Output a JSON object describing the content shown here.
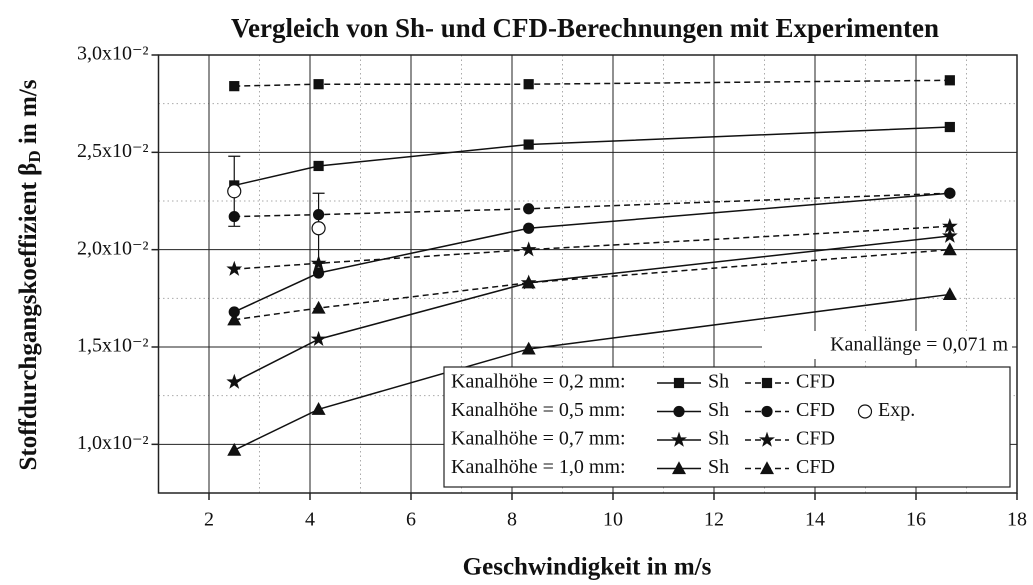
{
  "chart_data": {
    "type": "line",
    "title": "Vergleich von Sh- und CFD-Berechnungen mit Experimenten",
    "xlabel": "Geschwindigkeit in m/s",
    "ylabel": [
      "Stoffdurchgangskoeffizient β",
      "D",
      " in m/s"
    ],
    "annotation": "Kanallänge = 0,071 m",
    "x": [
      2.5,
      4.17,
      8.33,
      16.67
    ],
    "xlim": [
      1,
      18
    ],
    "xticks": [
      2,
      4,
      6,
      8,
      10,
      12,
      14,
      16,
      18
    ],
    "ylim": [
      0.0075,
      0.03
    ],
    "yticks": [
      {
        "value": 0.01,
        "label": "1,0x10⁻²"
      },
      {
        "value": 0.015,
        "label": "1,5x10⁻²"
      },
      {
        "value": 0.02,
        "label": "2,0x10⁻²"
      },
      {
        "value": 0.025,
        "label": "2,5x10⁻²"
      },
      {
        "value": 0.03,
        "label": "3,0x10⁻²"
      }
    ],
    "grid": true,
    "minor_grid": true,
    "color": "#111111",
    "groups": [
      {
        "label": "Kanalhöhe = 0,2 mm:",
        "marker": "square",
        "series": [
          {
            "name": "Sh",
            "dashed": false,
            "values": [
              0.0233,
              0.0243,
              0.0254,
              0.0263
            ]
          },
          {
            "name": "CFD",
            "dashed": true,
            "values": [
              0.0284,
              0.0285,
              0.0285,
              0.0287
            ]
          }
        ]
      },
      {
        "label": "Kanalhöhe = 0,5 mm:",
        "marker": "circle",
        "series": [
          {
            "name": "Sh",
            "dashed": false,
            "values": [
              0.0168,
              0.0188,
              0.0211,
              0.0229
            ]
          },
          {
            "name": "CFD",
            "dashed": true,
            "values": [
              0.0217,
              0.0218,
              0.0221,
              0.0229
            ]
          }
        ]
      },
      {
        "label": "Kanalhöhe = 0,7 mm:",
        "marker": "star",
        "series": [
          {
            "name": "Sh",
            "dashed": false,
            "values": [
              0.0132,
              0.0154,
              0.0183,
              0.0207
            ]
          },
          {
            "name": "CFD",
            "dashed": true,
            "values": [
              0.019,
              0.0193,
              0.02,
              0.0212
            ]
          }
        ]
      },
      {
        "label": "Kanalhöhe = 1,0 mm:",
        "marker": "triangle",
        "series": [
          {
            "name": "Sh",
            "dashed": false,
            "values": [
              0.0097,
              0.0118,
              0.0149,
              0.0177
            ]
          },
          {
            "name": "CFD",
            "dashed": true,
            "values": [
              0.0164,
              0.017,
              0.0183,
              0.02
            ]
          }
        ]
      }
    ],
    "experiment": {
      "name": "Exp.",
      "x": [
        2.5,
        4.17
      ],
      "values": [
        0.023,
        0.0211
      ],
      "errors": [
        0.0018,
        0.0018
      ]
    }
  }
}
